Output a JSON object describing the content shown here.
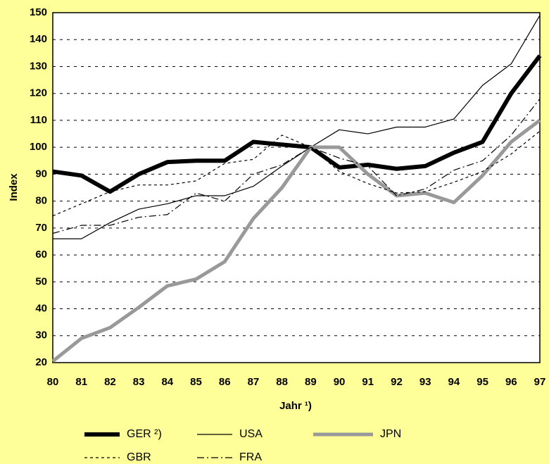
{
  "chart_data": {
    "type": "line",
    "xlabel": "Jahr ¹)",
    "ylabel": "Index",
    "categories": [
      "80",
      "81",
      "82",
      "83",
      "84",
      "85",
      "86",
      "87",
      "88",
      "89",
      "90",
      "91",
      "92",
      "93",
      "94",
      "95",
      "96",
      "97"
    ],
    "ylim": [
      20,
      150
    ],
    "yticks": [
      20,
      30,
      40,
      50,
      60,
      70,
      80,
      90,
      100,
      110,
      120,
      130,
      140,
      150
    ],
    "grid": true,
    "legend": "bottom",
    "series": [
      {
        "name": "GER ²)",
        "color": "#000000",
        "line_width": 6,
        "dash": "none",
        "values": [
          91,
          89.5,
          83.5,
          90,
          94.5,
          95,
          95,
          102,
          101,
          100,
          92.5,
          93.5,
          92,
          93,
          98,
          102,
          120,
          134
        ]
      },
      {
        "name": "USA",
        "color": "#000000",
        "line_width": 1.2,
        "dash": "none",
        "values": [
          66,
          66,
          72,
          77,
          79,
          82,
          82,
          85.5,
          93,
          100,
          106.5,
          105,
          107.5,
          107.5,
          110.5,
          123,
          131,
          149
        ]
      },
      {
        "name": "JPN",
        "color": "#999999",
        "line_width": 5,
        "dash": "none",
        "values": [
          20.5,
          29,
          33,
          40.5,
          48.5,
          51,
          57.5,
          73.5,
          85,
          100,
          100,
          90,
          82,
          83,
          79.5,
          89.5,
          102,
          110
        ]
      },
      {
        "name": "GBR",
        "color": "#000000",
        "line_width": 1.2,
        "dash": "4 4",
        "values": [
          74.5,
          79,
          83.5,
          86,
          86,
          87.5,
          94,
          95.5,
          104.5,
          100,
          91,
          86.5,
          83,
          83.5,
          87,
          91,
          97.5,
          106
        ]
      },
      {
        "name": "FRA",
        "color": "#000000",
        "line_width": 1.2,
        "dash": "10 4 2 4",
        "values": [
          68,
          71,
          71,
          74,
          75,
          83,
          80,
          90,
          93.5,
          100,
          96,
          93,
          82,
          84.5,
          91.5,
          95,
          104.5,
          118
        ]
      }
    ]
  }
}
